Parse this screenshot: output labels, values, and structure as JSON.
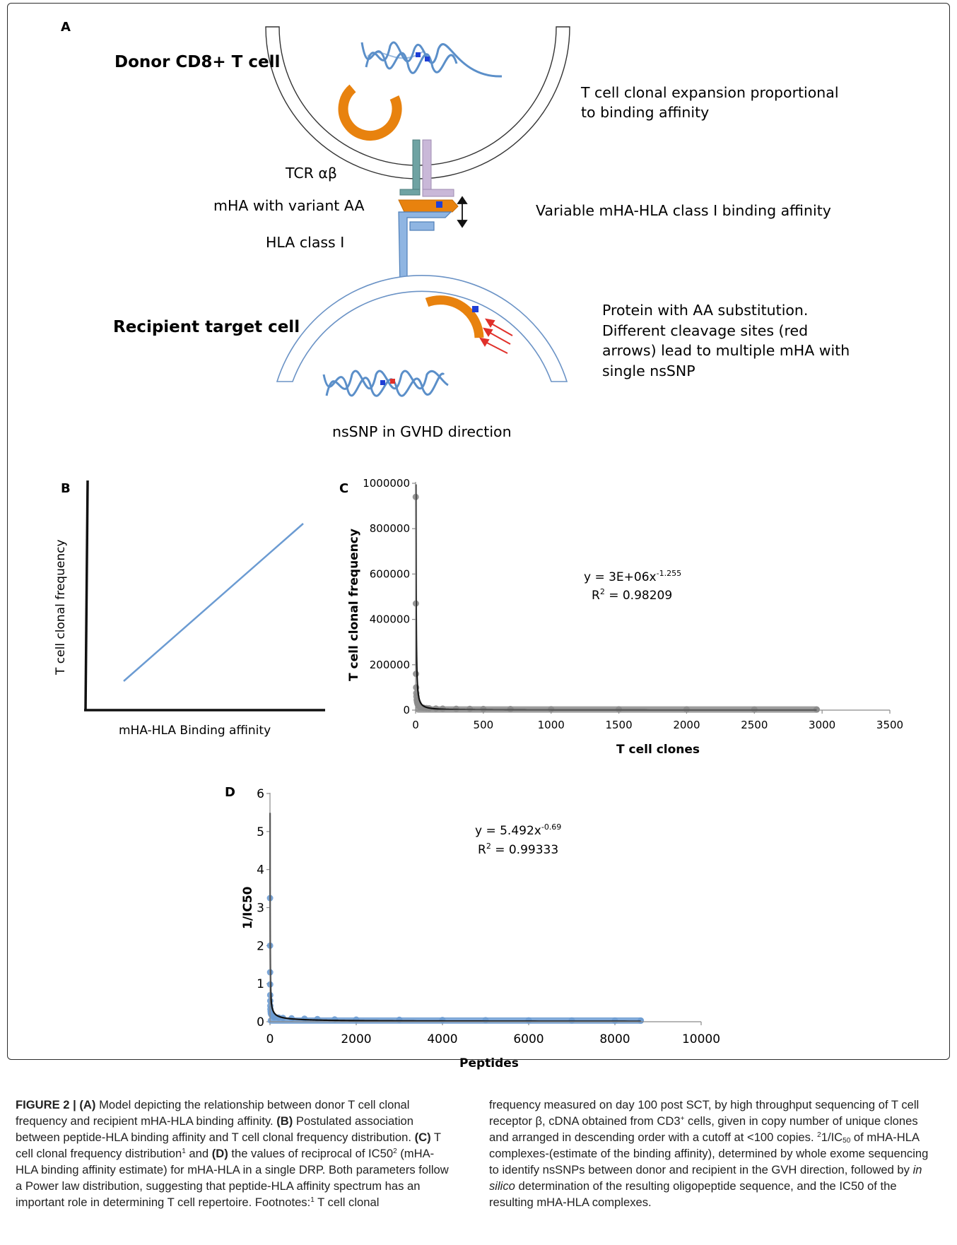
{
  "panel_a": {
    "letter": "A",
    "donor_label": "Donor CD8+ T cell",
    "clonal_expansion": [
      "T cell clonal expansion proportional",
      "to binding affinity"
    ],
    "tcr_label": "TCR αβ",
    "mha_label": "mHA with variant  AA",
    "hla_label": "HLA class I",
    "affinity_label": "Variable mHA-HLA class I binding affinity",
    "recipient_label": "Recipient target cell",
    "protein_note": [
      "Protein with AA substitution.",
      "Different cleavage sites (red",
      "arrows) lead to multiple mHA with",
      "single nsSNP"
    ],
    "nssnp_label": "nsSNP in GVHD direction",
    "colors": {
      "dna": "#5b8fc9",
      "protein": "#e8820e",
      "membrane": "#6b93c6",
      "variant": "#1f3fd6",
      "snp": "#e0302a",
      "tcr_teal": "#6fa3a3",
      "tcr_lilac": "#c9b8d8"
    }
  },
  "panel_b": {
    "letter": "B",
    "ylabel": "T cell clonal frequency",
    "xlabel": "mHA-HLA Binding affinity",
    "line_color": "#6b9bd2"
  },
  "chart_data": [
    {
      "panel": "C",
      "type": "scatter",
      "xlabel": "T cell clones",
      "ylabel": "T cell clonal frequency",
      "xlim": [
        0,
        3500
      ],
      "ylim": [
        0,
        1000000
      ],
      "xticks": [
        "0",
        "500",
        "1000",
        "1500",
        "2000",
        "2500",
        "3000",
        "3500"
      ],
      "yticks": [
        "0",
        "200000",
        "400000",
        "600000",
        "800000",
        "1000000"
      ],
      "equation": {
        "base": "y = 3E+06x",
        "exponent": "-1.255"
      },
      "r2": {
        "base": "R",
        "exponent": "2",
        "rest": " = 0.98209"
      },
      "series": [
        {
          "marker_color": "#8c8c8c",
          "x": [
            1,
            2,
            3,
            4,
            5,
            6,
            8,
            10,
            12,
            15,
            20,
            25,
            30,
            40,
            50,
            60,
            80,
            100,
            150,
            200,
            300,
            400,
            500,
            700,
            1000,
            1500,
            2000,
            2500,
            2960
          ],
          "y": [
            940000,
            470000,
            160000,
            100000,
            75000,
            60000,
            45000,
            38000,
            32000,
            26000,
            21000,
            18000,
            15500,
            13000,
            11000,
            10000,
            9000,
            8000,
            7000,
            6500,
            6000,
            5500,
            5000,
            4500,
            4000,
            3500,
            3000,
            2800,
            2600
          ]
        }
      ],
      "fit": {
        "a": 3000000,
        "b": -1.255
      }
    },
    {
      "panel": "D",
      "type": "scatter",
      "xlabel": "Peptides",
      "ylabel": "1/IC50",
      "xlim": [
        0,
        10000
      ],
      "ylim": [
        0,
        6
      ],
      "xticks": [
        "0",
        "2000",
        "4000",
        "6000",
        "8000",
        "10000"
      ],
      "yticks": [
        "0",
        "1",
        "2",
        "3",
        "4",
        "5",
        "6"
      ],
      "equation": {
        "base": "y = 5.492x",
        "exponent": "-0.69"
      },
      "r2": {
        "base": "R",
        "exponent": "2",
        "rest": " = 0.99333"
      },
      "series": [
        {
          "marker_color": "#6b9bd2",
          "x": [
            1,
            2,
            3,
            4,
            5,
            6,
            8,
            10,
            15,
            20,
            30,
            50,
            80,
            100,
            200,
            300,
            500,
            800,
            1100,
            1500,
            2000,
            3000,
            4000,
            5000,
            6000,
            7000,
            8000,
            8600
          ],
          "y": [
            3.25,
            2.0,
            1.3,
            0.98,
            0.7,
            0.55,
            0.42,
            0.33,
            0.27,
            0.22,
            0.19,
            0.16,
            0.14,
            0.12,
            0.11,
            0.1,
            0.09,
            0.08,
            0.07,
            0.06,
            0.055,
            0.05,
            0.045,
            0.04,
            0.035,
            0.033,
            0.03,
            0.03
          ]
        }
      ],
      "fit": {
        "a": 5.492,
        "b": -0.69
      }
    }
  ],
  "caption": {
    "label": "FIGURE 2 |",
    "a_tag": "(A)",
    "a_text": " Model depicting the relationship between donor T cell clonal frequency and recipient mHA-HLA binding affinity. ",
    "b_tag": "(B)",
    "b_text": " Postulated association between peptide-HLA binding affinity and T cell clonal frequency distribution. ",
    "c_tag": "(C)",
    "c_text": " T cell clonal frequency distribution",
    "fn1": "1",
    "and_text": " and ",
    "d_tag": "(D)",
    "d_text": " the values of reciprocal of IC50",
    "fn2": "2",
    "d_text2": " (mHA-HLA binding affinity estimate) for mHA-HLA in a single DRP. Both parameters follow a Power law distribution, suggesting that peptide-HLA affinity spectrum has an important role in determining T cell repertoire. Footnotes:",
    "fn1b": "1",
    "fn1_text": " T cell clonal frequency measured on day 100 post SCT, by high throughput sequencing of T cell receptor β, cDNA obtained from CD3",
    "plus": "+",
    "fn1_text2": " cells, given in copy number of unique clones and arranged in descending order with a cutoff at <100 copies. ",
    "fn2b": "2",
    "fn2_text": "1/IC",
    "fn2_sub": "50",
    "fn2_text2": " of mHA-HLA complexes-(estimate of the binding affinity), determined by whole exome sequencing to identify nsSNPs between donor and recipient in the GVH direction, followed by ",
    "in_silico": "in silico",
    "fn2_text3": " determination of the resulting oligopeptide sequence, and the IC50 of the resulting mHA-HLA complexes."
  }
}
